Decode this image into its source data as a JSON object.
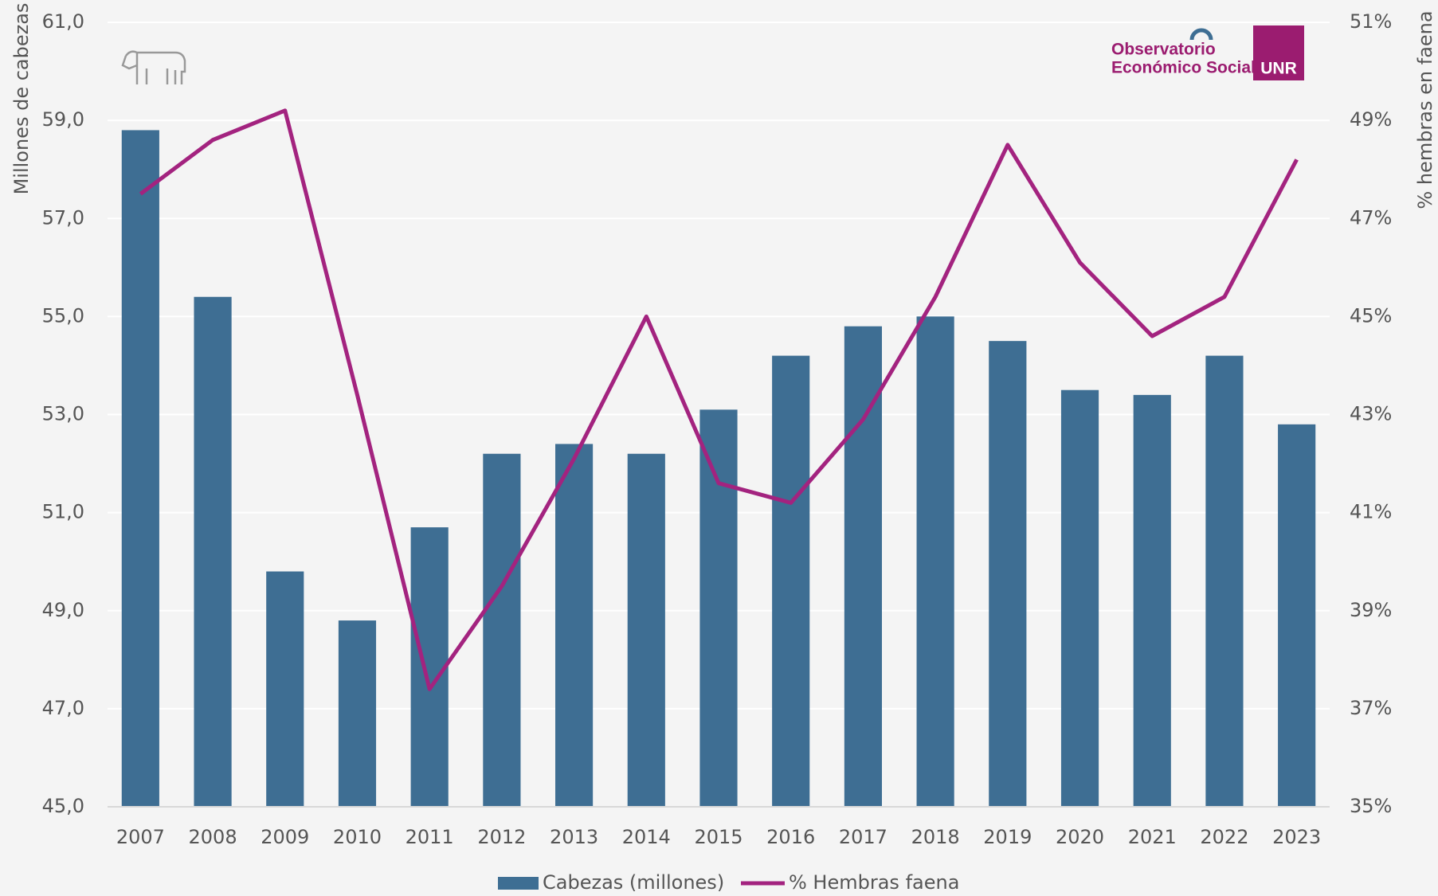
{
  "chart_data": {
    "type": "bar_line",
    "logo": {
      "line1": "Observatorio",
      "line2": "Económico Social",
      "badge": "UNR"
    },
    "y_label": "Millones de cabezas",
    "y2_label": "% hembras en faena",
    "categories": [
      "2007",
      "2008",
      "2009",
      "2010",
      "2011",
      "2012",
      "2013",
      "2014",
      "2015",
      "2016",
      "2017",
      "2018",
      "2019",
      "2020",
      "2021",
      "2022",
      "2023"
    ],
    "series": [
      {
        "name": "Cabezas (millones)",
        "type": "bar",
        "color": "#3e6e93",
        "values": [
          58.8,
          55.4,
          49.8,
          48.8,
          50.7,
          52.2,
          52.4,
          52.2,
          53.1,
          54.2,
          54.8,
          55.0,
          54.5,
          53.5,
          53.4,
          54.2,
          52.8
        ]
      },
      {
        "name": "% Hembras faena",
        "type": "line",
        "axis": "y2",
        "color": "#a3237f",
        "values": [
          47.5,
          48.6,
          49.2,
          43.4,
          37.4,
          39.5,
          42.1,
          45.0,
          41.6,
          41.2,
          42.9,
          45.4,
          48.5,
          46.1,
          44.6,
          45.4,
          48.2
        ]
      }
    ],
    "ylim": [
      45,
      61
    ],
    "yticks": [
      {
        "value": 45,
        "label": "45,0"
      },
      {
        "value": 47,
        "label": "47,0"
      },
      {
        "value": 49,
        "label": "49,0"
      },
      {
        "value": 51,
        "label": "51,0"
      },
      {
        "value": 53,
        "label": "53,0"
      },
      {
        "value": 55,
        "label": "55,0"
      },
      {
        "value": 57,
        "label": "57,0"
      },
      {
        "value": 59,
        "label": "59,0"
      },
      {
        "value": 61,
        "label": "61,0"
      }
    ],
    "y2lim": [
      35,
      51
    ],
    "y2ticks": [
      {
        "value": 35,
        "label": "35%"
      },
      {
        "value": 37,
        "label": "37%"
      },
      {
        "value": 39,
        "label": "39%"
      },
      {
        "value": 41,
        "label": "41%"
      },
      {
        "value": 43,
        "label": "43%"
      },
      {
        "value": 45,
        "label": "45%"
      },
      {
        "value": 47,
        "label": "47%"
      },
      {
        "value": 49,
        "label": "49%"
      },
      {
        "value": 51,
        "label": "51%"
      }
    ],
    "grid": true,
    "legend": "bottom"
  }
}
